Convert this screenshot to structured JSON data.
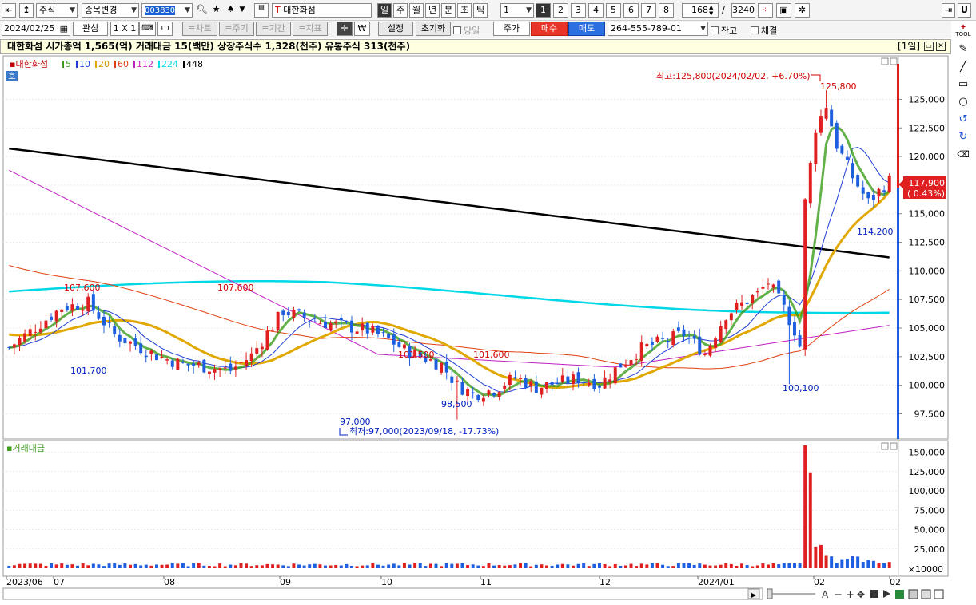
{
  "toolbar1": {
    "market": "주식",
    "change_item": "종목변경",
    "code": "003830",
    "stock_name": "대한화섬",
    "periods": [
      "일",
      "주",
      "월",
      "년",
      "분",
      "초",
      "틱"
    ],
    "active_period": "일",
    "interval": "1",
    "pages": [
      "1",
      "2",
      "3",
      "4",
      "5",
      "6",
      "7",
      "8"
    ],
    "active_page": "1",
    "count": "168",
    "total": "3240",
    "separator": "/",
    "u_label": "U"
  },
  "toolbar2": {
    "date": "2024/02/25",
    "watch": "관심",
    "layout": "1 X 1",
    "ratio": "1:1",
    "tabs": [
      "≡차트",
      "≡주기",
      "≡기간",
      "≡지표"
    ],
    "won": "₩",
    "settings": "설정",
    "reset": "초기화",
    "same_day": "당일",
    "price": "주가",
    "buy": "매수",
    "sell": "매도",
    "account": "264-555-789-01",
    "balance": "잔고",
    "fill": "체결"
  },
  "infobar": {
    "text": "대한화섬  시가총액 1,565(억)  거래대금 15(백만)  상장주식수 1,328(천주)  유통주식 313(천주)",
    "window": "[1일]"
  },
  "legend": {
    "name": "대한화섬",
    "ma": [
      {
        "label": "5",
        "color": "#3c9d1c"
      },
      {
        "label": "10",
        "color": "#1f3fd6"
      },
      {
        "label": "20",
        "color": "#e0a800"
      },
      {
        "label": "60",
        "color": "#e04010"
      },
      {
        "label": "112",
        "color": "#c020c0"
      },
      {
        "label": "224",
        "color": "#00d8e8"
      },
      {
        "label": "448",
        "color": "#000000"
      }
    ],
    "ho": "호",
    "volume_title": "거래대금"
  },
  "annotations": {
    "high_note": "최고:125,800(2024/02/02, +6.70%)",
    "low_note": "최저:97,000(2023/09/18, -17.73%)",
    "labels": [
      {
        "text": "107,600",
        "color": "#d00000"
      },
      {
        "text": "101,700",
        "color": "#0020c0"
      },
      {
        "text": "107,600",
        "color": "#d00000"
      },
      {
        "text": "97,000",
        "color": "#0020c0"
      },
      {
        "text": "101,500",
        "color": "#d00000"
      },
      {
        "text": "98,500",
        "color": "#0020c0"
      },
      {
        "text": "101,600",
        "color": "#d00000"
      },
      {
        "text": "100,100",
        "color": "#0020c0"
      },
      {
        "text": "125,800",
        "color": "#d00000"
      },
      {
        "text": "114,200",
        "color": "#0020c0"
      }
    ],
    "current_price": "117,900",
    "current_change": "( 0.43%)",
    "unit": "×10000"
  },
  "chart_data": {
    "type": "candlestick",
    "price_axis": {
      "ticks": [
        "125,000",
        "122,500",
        "120,000",
        "117,500",
        "115,000",
        "112,500",
        "110,000",
        "107,500",
        "105,000",
        "102,500",
        "100,000",
        "97,500"
      ],
      "range": [
        95300,
        128800
      ]
    },
    "volume_axis": {
      "ticks": [
        "150,000",
        "125,000",
        "100,000",
        "75,000",
        "50,000",
        "25,000"
      ],
      "range": [
        0,
        165000
      ]
    },
    "x_labels": [
      "2023/06",
      "07",
      "08",
      "09",
      "10",
      "11",
      "12",
      "2024/01",
      "02",
      "02"
    ],
    "colors": {
      "up": "#e02020",
      "down": "#1e5fe0"
    }
  },
  "bottom": {
    "font_a": "A",
    "icons": [
      "minus-icon",
      "plus-icon",
      "move-icon",
      "stop-icon",
      "play-icon",
      "excel-icon",
      "save-icon",
      "print-icon",
      "window-icon"
    ]
  }
}
